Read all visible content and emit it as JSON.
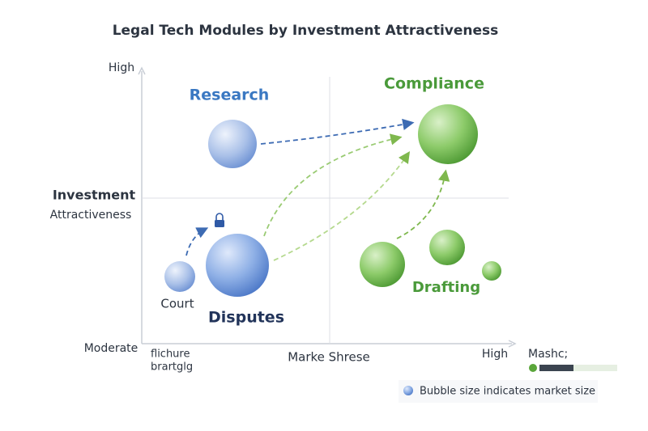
{
  "title": "Legal Tech Modules by Investment Attractiveness",
  "y_axis": {
    "top": "High",
    "label_bold": "Investment",
    "label": "Attractiveness",
    "bottom": "Moderate"
  },
  "x_axis": {
    "left_lines": [
      "flichure",
      "brartglg"
    ],
    "label": "Marke Shrese",
    "right": "High",
    "extra": "Mashc;"
  },
  "modules": [
    {
      "label": "Research"
    },
    {
      "label": "Compliance"
    },
    {
      "label": "Drafting"
    },
    {
      "label": "Court"
    },
    {
      "label": "Disputes"
    }
  ],
  "legend": "Bubble size indicates market size"
}
